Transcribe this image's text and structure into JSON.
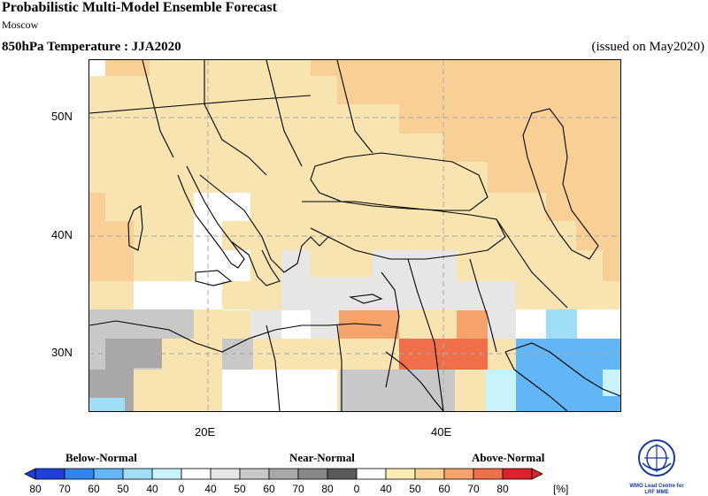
{
  "header": {
    "title": "Probabilistic Multi-Model Ensemble Forecast",
    "subtitle": "Moscow",
    "variable": "850hPa Temperature : JJA2020",
    "issued": "(issued on May2020)"
  },
  "map": {
    "lat_labels": [
      "50N",
      "40N",
      "30N"
    ],
    "lon_labels": [
      "20E",
      "40E"
    ]
  },
  "legend": {
    "categories": [
      "Below-Normal",
      "Near-Normal",
      "Above-Normal"
    ],
    "below_labels": [
      "80",
      "70",
      "60",
      "50",
      "40"
    ],
    "near_labels": [
      "0",
      "40",
      "50",
      "60",
      "70",
      "80"
    ],
    "above_labels": [
      "0",
      "40",
      "50",
      "60",
      "70",
      "80"
    ],
    "unit": "[%]",
    "colors": {
      "below": [
        "#1f3fd6",
        "#2f86ee",
        "#62b6f5",
        "#a0def8",
        "#c9f3fb"
      ],
      "near": [
        "#e6e6e6",
        "#c8c8c8",
        "#a8a8a8",
        "#888888",
        "#5a5a5a"
      ],
      "above": [
        "#faecb4",
        "#f8d195",
        "#f5a36a",
        "#f06f4a",
        "#e0202a"
      ]
    }
  },
  "logo": {
    "line1": "WMO Lead Centre for",
    "line2": "LRF MME"
  }
}
